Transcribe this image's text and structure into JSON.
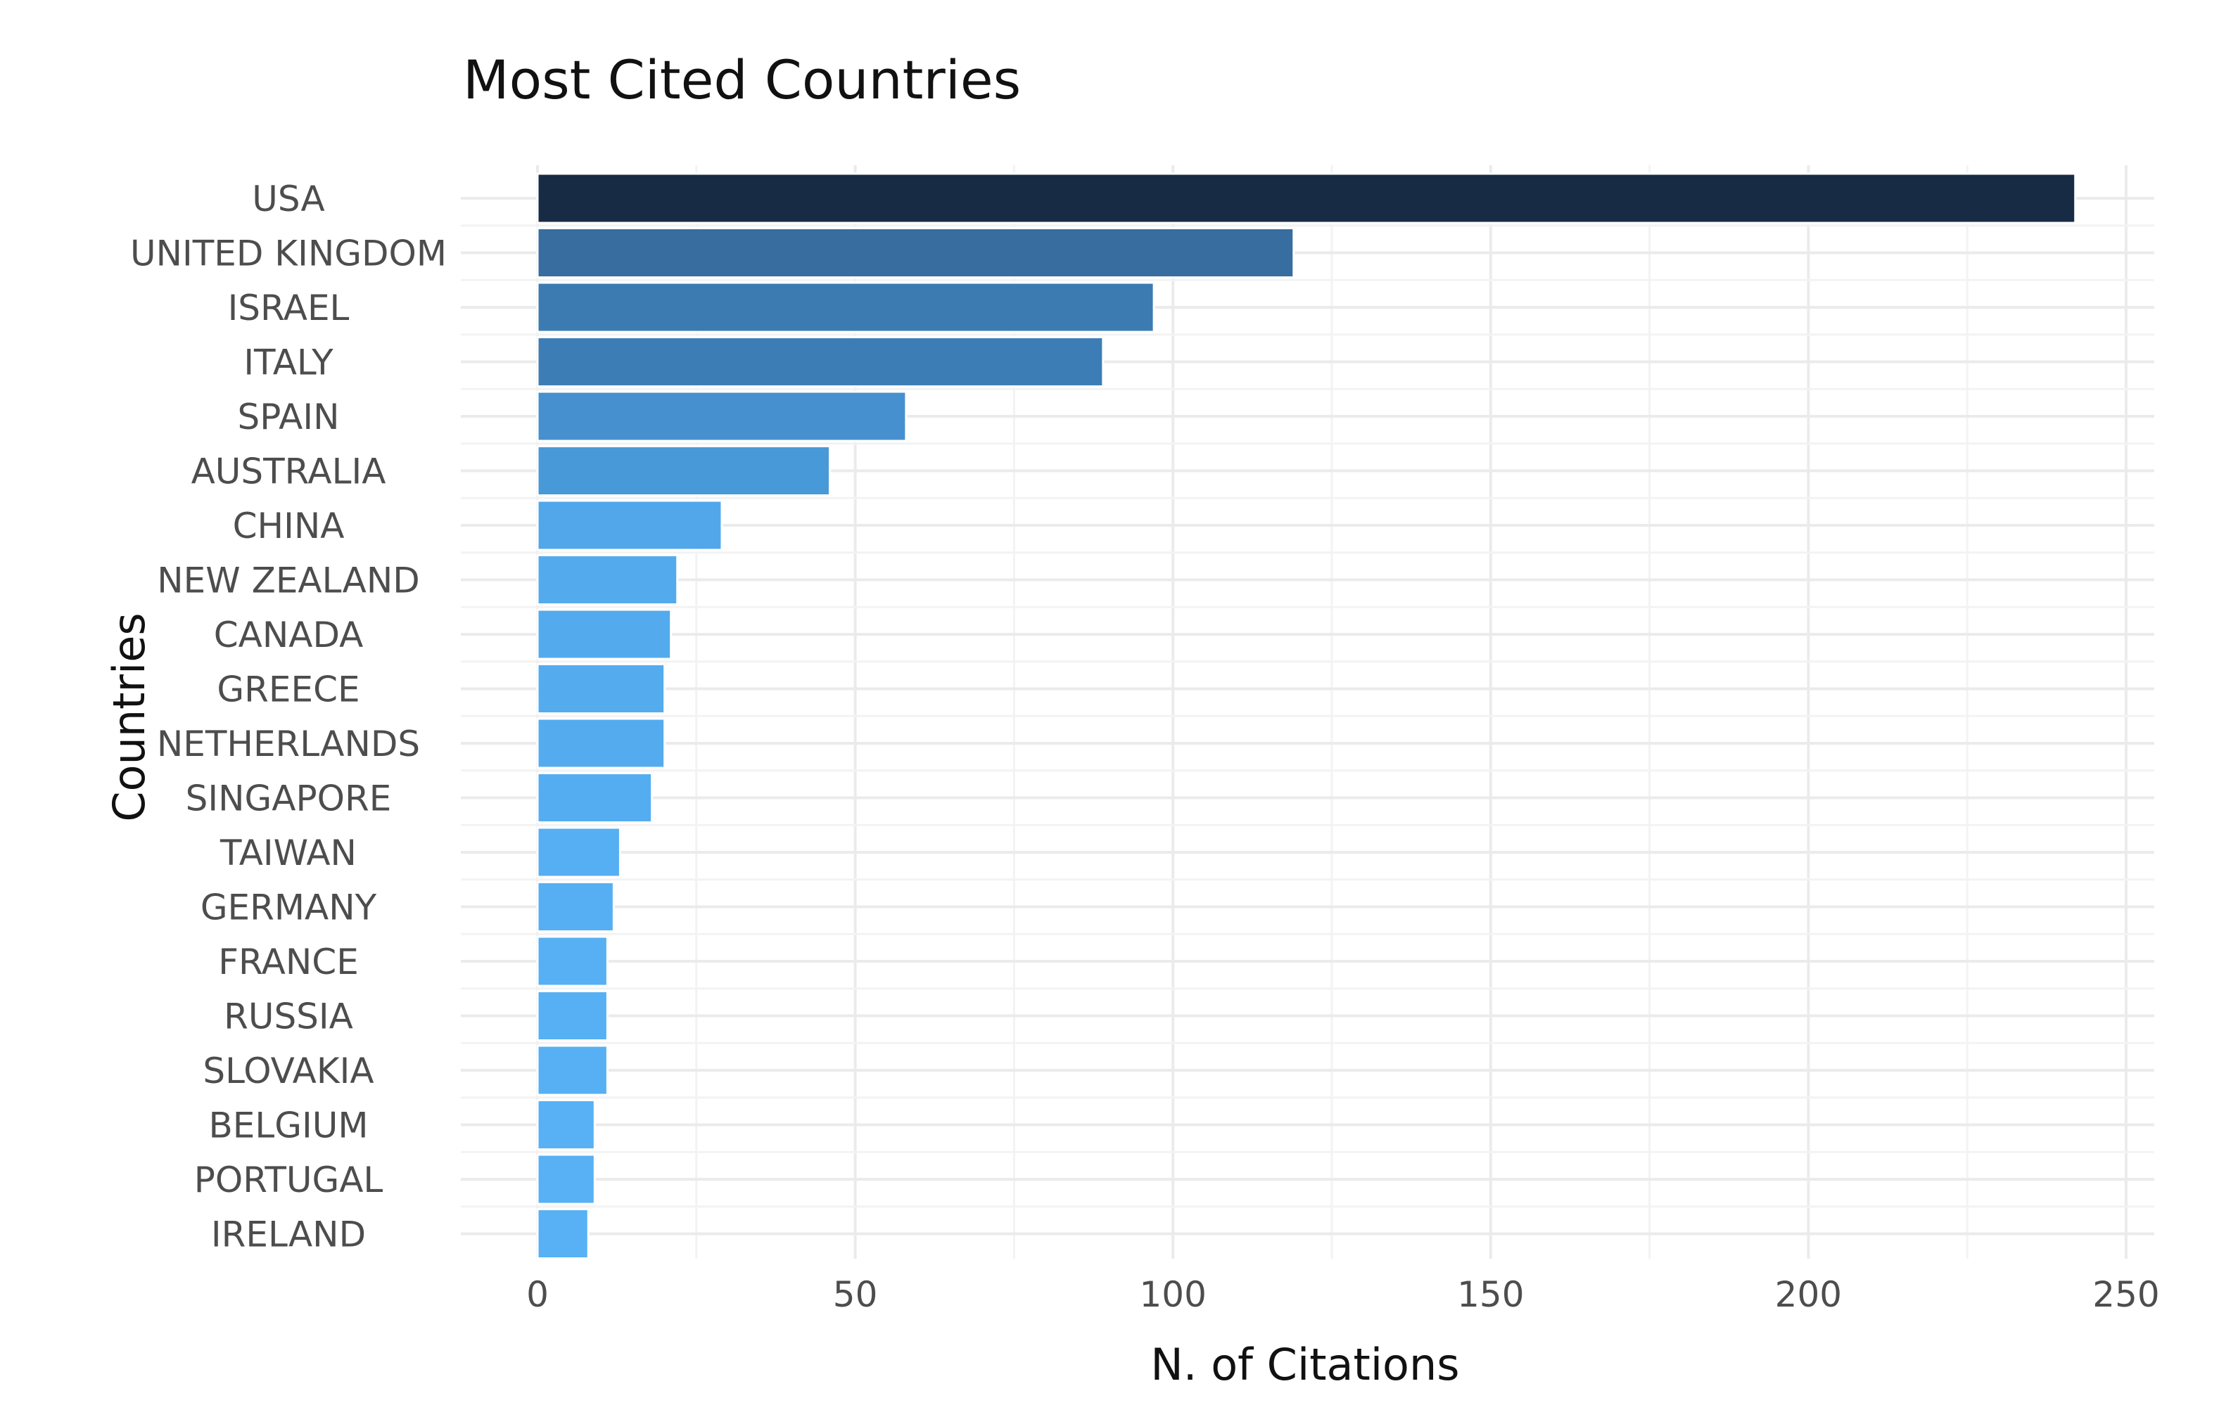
{
  "chart_data": {
    "type": "bar",
    "orientation": "horizontal",
    "title": "Most Cited Countries",
    "xlabel": "N. of Citations",
    "ylabel": "Countries",
    "xlim": [
      0,
      250
    ],
    "xticks": [
      0,
      50,
      100,
      150,
      200,
      250
    ],
    "grid": true,
    "legend": "none",
    "categories": [
      "USA",
      "UNITED KINGDOM",
      "ISRAEL",
      "ITALY",
      "SPAIN",
      "AUSTRALIA",
      "CHINA",
      "NEW ZEALAND",
      "CANADA",
      "GREECE",
      "NETHERLANDS",
      "SINGAPORE",
      "TAIWAN",
      "GERMANY",
      "FRANCE",
      "RUSSIA",
      "SLOVAKIA",
      "BELGIUM",
      "PORTUGAL",
      "IRELAND"
    ],
    "values": [
      242,
      119,
      97,
      89,
      58,
      46,
      29,
      22,
      21,
      20,
      20,
      18,
      13,
      12,
      11,
      11,
      11,
      9,
      9,
      8
    ],
    "colors": [
      "#172b45",
      "#376d9f",
      "#3b7bb1",
      "#3d7db5",
      "#4690cf",
      "#4899d8",
      "#51a7ea",
      "#53abed",
      "#53abed",
      "#54acef",
      "#54acef",
      "#54adf0",
      "#56aff2",
      "#56aff2",
      "#56b0f3",
      "#56b0f3",
      "#56b0f3",
      "#57b1f4",
      "#57b1f4",
      "#57b1f4"
    ]
  }
}
